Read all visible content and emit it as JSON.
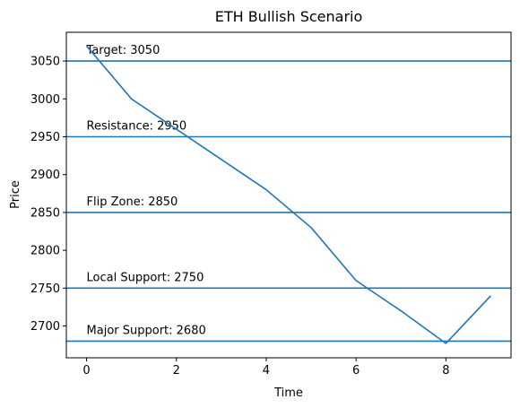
{
  "chart_data": {
    "type": "line",
    "title": "ETH Bullish Scenario",
    "xlabel": "Time",
    "ylabel": "Price",
    "xlim": [
      -0.45,
      9.45
    ],
    "ylim": [
      2658,
      3088
    ],
    "xticks": [
      0,
      2,
      4,
      6,
      8
    ],
    "yticks": [
      2700,
      2750,
      2800,
      2850,
      2900,
      2950,
      3000,
      3050
    ],
    "grid": false,
    "line_color": "#1f77b4",
    "series": [
      {
        "x": [
          0,
          1,
          2,
          3,
          4,
          5,
          6,
          7,
          8,
          9
        ],
        "y": [
          3070,
          3000,
          2960,
          2920,
          2880,
          2830,
          2760,
          2720,
          2677,
          2740
        ]
      }
    ],
    "hlines": [
      {
        "y": 3050,
        "label": "Target: 3050"
      },
      {
        "y": 2950,
        "label": "Resistance: 2950"
      },
      {
        "y": 2850,
        "label": "Flip Zone: 2850"
      },
      {
        "y": 2750,
        "label": "Local Support: 2750"
      },
      {
        "y": 2680,
        "label": "Major Support: 2680"
      }
    ]
  }
}
